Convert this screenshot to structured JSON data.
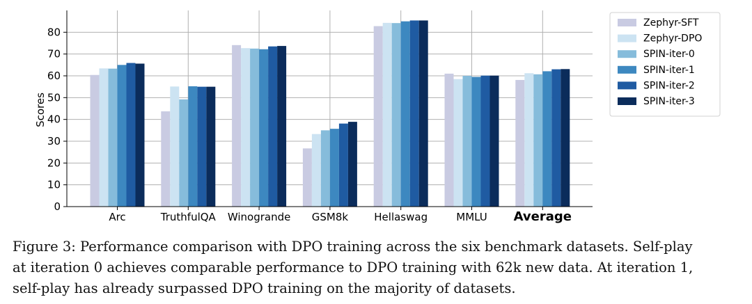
{
  "chart_data": {
    "type": "bar",
    "categories": [
      "Arc",
      "TruthfulQA",
      "Winogrande",
      "GSM8k",
      "Hellaswag",
      "MMLU",
      "Average"
    ],
    "bold_categories": [
      "Average"
    ],
    "ylabel": "Scores",
    "xlabel": "",
    "ylim": [
      0,
      90
    ],
    "yticks": [
      0,
      10,
      20,
      30,
      40,
      50,
      60,
      70,
      80
    ],
    "grid": true,
    "legend_position": "right",
    "series": [
      {
        "name": "Zephyr-SFT",
        "color": "#c9cbe2",
        "values": [
          60.4,
          43.7,
          74.1,
          26.7,
          82.8,
          61.0,
          58.1
        ]
      },
      {
        "name": "Zephyr-DPO",
        "color": "#cce3f2",
        "values": [
          63.4,
          55.1,
          72.7,
          33.3,
          84.3,
          58.5,
          61.2
        ]
      },
      {
        "name": "SPIN-iter-0",
        "color": "#86bcdb",
        "values": [
          63.3,
          49.2,
          72.5,
          35.0,
          84.2,
          60.0,
          60.7
        ]
      },
      {
        "name": "SPIN-iter-1",
        "color": "#3d88c0",
        "values": [
          65.0,
          55.2,
          72.2,
          35.7,
          85.0,
          59.5,
          62.1
        ]
      },
      {
        "name": "SPIN-iter-2",
        "color": "#1f5ba2",
        "values": [
          65.9,
          55.0,
          73.5,
          38.1,
          85.4,
          60.1,
          63.0
        ]
      },
      {
        "name": "SPIN-iter-3",
        "color": "#0b2c5b",
        "values": [
          65.6,
          55.0,
          73.7,
          38.9,
          85.4,
          60.1,
          63.1
        ]
      }
    ]
  },
  "caption": {
    "line1": "Figure 3: Performance comparison with DPO training across the six benchmark datasets. Self-play",
    "line2": "at iteration 0 achieves comparable performance to DPO training with 62k new data. At iteration 1,",
    "line3": "self-play has already surpassed DPO training on the majority of datasets."
  }
}
